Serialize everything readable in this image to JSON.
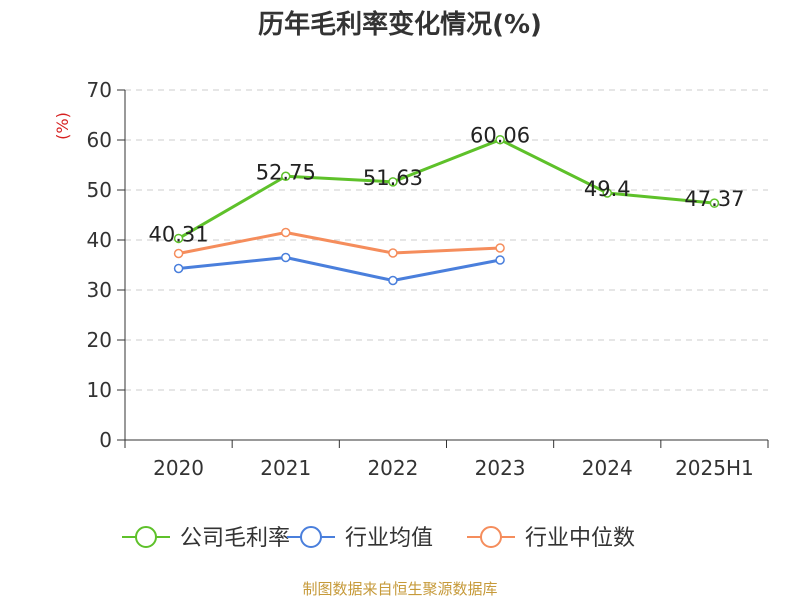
{
  "chart_data": {
    "type": "line",
    "title": "历年毛利率变化情况(%)",
    "ylabel": "(%)",
    "xlabel": "",
    "categories": [
      "2020",
      "2021",
      "2022",
      "2023",
      "2024",
      "2025H1"
    ],
    "ylim": [
      0,
      70
    ],
    "yticks": [
      0,
      10,
      20,
      30,
      40,
      50,
      60,
      70
    ],
    "grid": true,
    "legend_position": "bottom",
    "series": [
      {
        "name": "公司毛利率",
        "color": "#5ec12a",
        "values": [
          40.31,
          52.75,
          51.63,
          60.06,
          49.4,
          47.37
        ],
        "labels": true
      },
      {
        "name": "行业均值",
        "color": "#4a7fdc",
        "values": [
          34.3,
          36.5,
          31.9,
          36.0,
          null,
          null
        ],
        "labels": false
      },
      {
        "name": "行业中位数",
        "color": "#f58d5c",
        "values": [
          37.3,
          41.5,
          37.4,
          38.4,
          null,
          null
        ],
        "labels": false
      }
    ]
  },
  "footer": {
    "source": "制图数据来自恒生聚源数据库"
  }
}
